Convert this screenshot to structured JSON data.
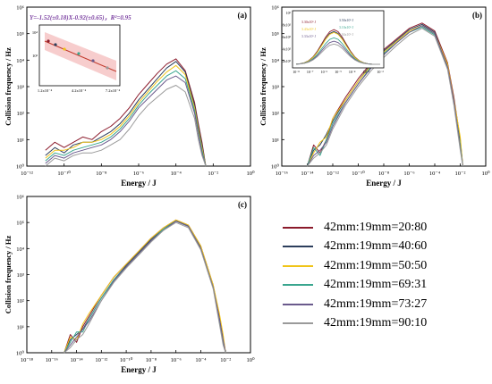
{
  "colors": {
    "20:80": "#8b1a2b",
    "40:60": "#2c3e5c",
    "50:50": "#f0c419",
    "69:31": "#3aa68f",
    "73:27": "#6a5a8c",
    "90:10": "#9a9a9a"
  },
  "legend": {
    "items": [
      {
        "label": "42mm:19mm=20:80",
        "color": "#8b1a2b"
      },
      {
        "label": "42mm:19mm=40:60",
        "color": "#2c3e5c"
      },
      {
        "label": "42mm:19mm=50:50",
        "color": "#f0c419"
      },
      {
        "label": "42mm:19mm=69:31",
        "color": "#3aa68f"
      },
      {
        "label": "42mm:19mm=73:27",
        "color": "#6a5a8c"
      },
      {
        "label": "42mm:19mm=90:10",
        "color": "#9a9a9a"
      }
    ]
  },
  "chart_data": [
    {
      "type": "line",
      "panel_label": "(a)",
      "xlabel": "Energy / J",
      "ylabel": "Collision frequency / Hz",
      "xscale": "log",
      "yscale": "log",
      "xlim_exp": [
        -12,
        0
      ],
      "ylim_exp": [
        0,
        6
      ],
      "x_ticks": [
        "10⁻¹²",
        "10⁻¹⁰",
        "10⁻⁸",
        "10⁻⁶",
        "10⁻⁴",
        "10⁻²",
        "10⁰"
      ],
      "y_ticks": [
        "10⁰",
        "10¹",
        "10²",
        "10³",
        "10⁴",
        "10⁵",
        "10⁶"
      ],
      "annotation": "Y=-1.52(±0.18)X-0.92(±0.65)，R²=0.95",
      "inset": {
        "x_ticks": [
          "1.2x10⁻⁴",
          "4.2x10⁻⁴",
          "7.2x10⁻⁴"
        ],
        "y_ticks": [
          "10⁴",
          "10³"
        ]
      },
      "series": [
        {
          "key": "20:80",
          "x_exp": [
            -11,
            -10.5,
            -10,
            -9.5,
            -9,
            -8.5,
            -8,
            -7.5,
            -7,
            -6.5,
            -6,
            -5.5,
            -5,
            -4.5,
            -4,
            -3.5,
            -3,
            -2.8,
            -2.6,
            -2.4
          ],
          "y_exp": [
            0.6,
            0.9,
            0.7,
            0.9,
            1.1,
            1.0,
            1.3,
            1.5,
            1.8,
            2.2,
            2.7,
            3.1,
            3.5,
            3.85,
            4.05,
            3.6,
            2.4,
            1.6,
            0.9,
            0
          ]
        },
        {
          "key": "40:60",
          "x_exp": [
            -11,
            -10.5,
            -10,
            -9.5,
            -9,
            -8.5,
            -8,
            -7.5,
            -7,
            -6.5,
            -6,
            -5.5,
            -5,
            -4.5,
            -4,
            -3.5,
            -3,
            -2.8,
            -2.6,
            -2.4
          ],
          "y_exp": [
            0.4,
            0.7,
            0.5,
            0.8,
            0.9,
            0.9,
            1.1,
            1.3,
            1.6,
            2.0,
            2.5,
            2.9,
            3.3,
            3.7,
            3.95,
            3.55,
            2.3,
            1.5,
            0.8,
            0
          ]
        },
        {
          "key": "50:50",
          "x_exp": [
            -11,
            -10.5,
            -10,
            -9.5,
            -9,
            -8.5,
            -8,
            -7.5,
            -7,
            -6.5,
            -6,
            -5.5,
            -5,
            -4.5,
            -4,
            -3.5,
            -3,
            -2.8,
            -2.6,
            -2.4
          ],
          "y_exp": [
            0.3,
            0.6,
            0.6,
            0.7,
            0.9,
            0.9,
            1.0,
            1.2,
            1.5,
            1.9,
            2.4,
            2.8,
            3.2,
            3.55,
            3.8,
            3.45,
            2.2,
            1.4,
            0.7,
            0
          ]
        },
        {
          "key": "69:31",
          "x_exp": [
            -11,
            -10.5,
            -10,
            -9.5,
            -9,
            -8.5,
            -8,
            -7.5,
            -7,
            -6.5,
            -6,
            -5.5,
            -5,
            -4.5,
            -4,
            -3.5,
            -3,
            -2.8,
            -2.6,
            -2.4
          ],
          "y_exp": [
            0.2,
            0.5,
            0.4,
            0.6,
            0.7,
            0.8,
            0.9,
            1.1,
            1.4,
            1.8,
            2.3,
            2.7,
            3.05,
            3.4,
            3.6,
            3.3,
            2.1,
            1.3,
            0.6,
            0
          ]
        },
        {
          "key": "73:27",
          "x_exp": [
            -11,
            -10.5,
            -10,
            -9.5,
            -9,
            -8.5,
            -8,
            -7.5,
            -7,
            -6.5,
            -6,
            -5.5,
            -5,
            -4.5,
            -4,
            -3.5,
            -3,
            -2.8,
            -2.6,
            -2.4
          ],
          "y_exp": [
            0.1,
            0.4,
            0.3,
            0.5,
            0.6,
            0.7,
            0.8,
            1.0,
            1.3,
            1.7,
            2.2,
            2.55,
            2.9,
            3.25,
            3.4,
            3.15,
            2.0,
            1.2,
            0.5,
            0
          ]
        },
        {
          "key": "90:10",
          "x_exp": [
            -11,
            -10.5,
            -10,
            -9.5,
            -9,
            -8.5,
            -8,
            -7.5,
            -7,
            -6.5,
            -6,
            -5.5,
            -5,
            -4.5,
            -4,
            -3.5,
            -3,
            -2.8,
            -2.6,
            -2.4
          ],
          "y_exp": [
            0,
            0.3,
            0.2,
            0.4,
            0.5,
            0.5,
            0.6,
            0.8,
            1.0,
            1.4,
            1.9,
            2.3,
            2.6,
            2.9,
            3.05,
            2.8,
            1.8,
            1.0,
            0.4,
            0
          ]
        }
      ]
    },
    {
      "type": "line",
      "panel_label": "(b)",
      "xlabel": "Energy / J",
      "ylabel": "Collision frequency / Hz",
      "xscale": "log",
      "yscale": "log",
      "xlim_exp": [
        -16,
        0
      ],
      "ylim_exp": [
        0,
        6
      ],
      "x_ticks": [
        "10⁻¹⁶",
        "10⁻¹⁴",
        "10⁻¹²",
        "10⁻¹⁰",
        "10⁻⁸",
        "10⁻⁶",
        "10⁻⁴",
        "10⁻²",
        "10⁰"
      ],
      "y_ticks": [
        "10⁰",
        "10¹",
        "10²",
        "10³",
        "10⁴",
        "10⁵",
        "10⁶"
      ],
      "inset": {
        "x_ticks": [
          "10⁻⁸",
          "10⁻⁷",
          "10⁻⁶",
          "10⁻⁵",
          "10⁻⁴",
          "10⁻³",
          "10⁻²"
        ],
        "y_ticks": [
          "2x10⁵",
          "4x10⁵",
          "6x10⁵",
          "8x10⁵",
          "10⁶"
        ],
        "point_labels": [
          "3.30x10⁵ J",
          "3.50x10⁵ J",
          "3.43x10⁵ J",
          "3.10x10⁵ J",
          "3.33x10⁵ J",
          "3.04x10⁵ J"
        ]
      },
      "series": [
        {
          "key": "20:80",
          "x_exp": [
            -14,
            -13.5,
            -13,
            -12.5,
            -12,
            -11,
            -10,
            -9,
            -8,
            -7,
            -6,
            -5,
            -4,
            -3,
            -2.5,
            -2,
            -1.8
          ],
          "y_exp": [
            0,
            0.8,
            0.5,
            1.0,
            1.8,
            2.6,
            3.3,
            3.9,
            4.4,
            4.8,
            5.2,
            5.4,
            5.1,
            3.9,
            2.6,
            1.0,
            0
          ]
        },
        {
          "key": "40:60",
          "x_exp": [
            -14,
            -13.5,
            -13,
            -12.5,
            -12,
            -11,
            -10,
            -9,
            -8,
            -7,
            -6,
            -5,
            -4,
            -3,
            -2.5,
            -2,
            -1.8
          ],
          "y_exp": [
            0,
            0.6,
            0.8,
            1.2,
            1.7,
            2.5,
            3.2,
            3.85,
            4.35,
            4.75,
            5.15,
            5.35,
            5.05,
            3.8,
            2.5,
            0.9,
            0
          ]
        },
        {
          "key": "50:50",
          "x_exp": [
            -14,
            -13.5,
            -13,
            -12.5,
            -12,
            -11,
            -10,
            -9,
            -8,
            -7,
            -6,
            -5,
            -4,
            -3,
            -2.5,
            -2,
            -1.8
          ],
          "y_exp": [
            0,
            0.5,
            0.9,
            1.1,
            1.8,
            2.5,
            3.2,
            3.8,
            4.3,
            4.7,
            5.1,
            5.3,
            5.0,
            3.85,
            2.5,
            1.1,
            0
          ]
        },
        {
          "key": "69:31",
          "x_exp": [
            -14,
            -13.5,
            -13,
            -12.5,
            -12,
            -11,
            -10,
            -9,
            -8,
            -7,
            -6,
            -5,
            -4,
            -3,
            -2.5,
            -2,
            -1.8
          ],
          "y_exp": [
            0,
            0.7,
            0.4,
            1.0,
            1.6,
            2.4,
            3.1,
            3.75,
            4.25,
            4.65,
            5.05,
            5.25,
            4.95,
            3.7,
            2.4,
            0.8,
            0
          ]
        },
        {
          "key": "73:27",
          "x_exp": [
            -14,
            -13.5,
            -13,
            -12.5,
            -12,
            -11,
            -10,
            -9,
            -8,
            -7,
            -6,
            -5,
            -4,
            -3,
            -2.5,
            -2,
            -1.8
          ],
          "y_exp": [
            0,
            0.4,
            0.6,
            0.9,
            1.5,
            2.4,
            3.1,
            3.7,
            4.2,
            4.65,
            5.05,
            5.3,
            5.0,
            3.75,
            2.45,
            0.7,
            0
          ]
        },
        {
          "key": "90:10",
          "x_exp": [
            -14,
            -13.5,
            -13,
            -12.5,
            -12,
            -11,
            -10,
            -9,
            -8,
            -7,
            -6,
            -5,
            -4,
            -3,
            -2.5,
            -2,
            -1.8
          ],
          "y_exp": [
            0,
            0.3,
            0.5,
            0.8,
            1.4,
            2.3,
            3.0,
            3.6,
            4.1,
            4.55,
            4.95,
            5.2,
            4.9,
            3.65,
            2.3,
            0.6,
            0
          ]
        }
      ]
    },
    {
      "type": "line",
      "panel_label": "(c)",
      "xlabel": "Energy / J",
      "ylabel": "Collision frequency / Hz",
      "xscale": "log",
      "yscale": "log",
      "xlim_exp": [
        -18,
        0
      ],
      "ylim_exp": [
        0,
        6
      ],
      "x_ticks": [
        "10⁻¹⁸",
        "10⁻¹⁶",
        "10⁻¹⁴",
        "10⁻¹²",
        "10⁻¹⁰",
        "10⁻⁸",
        "10⁻⁶",
        "10⁻⁴",
        "10⁻²",
        "10⁰"
      ],
      "y_ticks": [
        "10⁰",
        "10¹",
        "10²",
        "10³",
        "10⁴",
        "10⁵",
        "10⁶"
      ],
      "series": [
        {
          "key": "20:80",
          "x_exp": [
            -15,
            -14.5,
            -14,
            -13.5,
            -13,
            -12,
            -11,
            -10,
            -9,
            -8,
            -7,
            -6,
            -5,
            -4,
            -3,
            -2.5,
            -2.2,
            -2
          ],
          "y_exp": [
            0,
            0.7,
            0.4,
            1.0,
            1.4,
            2.2,
            2.9,
            3.4,
            3.9,
            4.4,
            4.8,
            5.1,
            4.9,
            4.1,
            2.6,
            1.4,
            0.6,
            0
          ]
        },
        {
          "key": "40:60",
          "x_exp": [
            -15,
            -14.5,
            -14,
            -13.5,
            -13,
            -12,
            -11,
            -10,
            -9,
            -8,
            -7,
            -6,
            -5,
            -4,
            -3,
            -2.5,
            -2.2,
            -2
          ],
          "y_exp": [
            0,
            0.5,
            0.7,
            0.9,
            1.3,
            2.1,
            2.8,
            3.35,
            3.85,
            4.35,
            4.75,
            5.08,
            4.88,
            4.05,
            2.55,
            1.3,
            0.5,
            0
          ]
        },
        {
          "key": "50:50",
          "x_exp": [
            -15,
            -14.5,
            -14,
            -13.5,
            -13,
            -12,
            -11,
            -10,
            -9,
            -8,
            -7,
            -6,
            -5,
            -4,
            -3,
            -2.5,
            -2.2,
            -2
          ],
          "y_exp": [
            0,
            0.6,
            0.5,
            1.1,
            1.5,
            2.2,
            2.9,
            3.4,
            3.9,
            4.4,
            4.8,
            5.1,
            4.9,
            4.1,
            2.6,
            1.5,
            0.7,
            0
          ]
        },
        {
          "key": "69:31",
          "x_exp": [
            -15,
            -14.5,
            -14,
            -13.5,
            -13,
            -12,
            -11,
            -10,
            -9,
            -8,
            -7,
            -6,
            -5,
            -4,
            -3,
            -2.5,
            -2.2,
            -2
          ],
          "y_exp": [
            0,
            0.4,
            0.8,
            0.8,
            1.3,
            2.1,
            2.8,
            3.3,
            3.8,
            4.3,
            4.75,
            5.05,
            4.85,
            4.0,
            2.5,
            1.2,
            0.4,
            0
          ]
        },
        {
          "key": "73:27",
          "x_exp": [
            -15,
            -14.5,
            -14,
            -13.5,
            -13,
            -12,
            -11,
            -10,
            -9,
            -8,
            -7,
            -6,
            -5,
            -4,
            -3,
            -2.5,
            -2.2,
            -2
          ],
          "y_exp": [
            0,
            0.3,
            0.6,
            0.9,
            1.2,
            2.0,
            2.75,
            3.3,
            3.8,
            4.3,
            4.7,
            5.05,
            4.85,
            4.0,
            2.5,
            1.3,
            0.5,
            0
          ]
        },
        {
          "key": "90:10",
          "x_exp": [
            -15,
            -14.5,
            -14,
            -13.5,
            -13,
            -12,
            -11,
            -10,
            -9,
            -8,
            -7,
            -6,
            -5,
            -4,
            -3,
            -2.5,
            -2.2,
            -2
          ],
          "y_exp": [
            0,
            0.2,
            0.5,
            0.7,
            1.1,
            2.0,
            2.7,
            3.25,
            3.75,
            4.25,
            4.7,
            5.0,
            4.8,
            3.95,
            2.45,
            1.1,
            0.3,
            0
          ]
        }
      ]
    }
  ]
}
